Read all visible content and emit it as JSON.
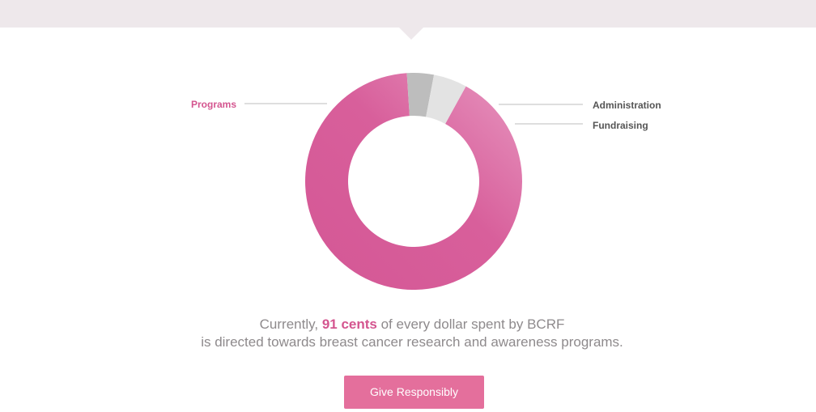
{
  "chart_data": {
    "type": "pie",
    "categories": [
      "Programs",
      "Administration",
      "Fundraising"
    ],
    "values": [
      91,
      4,
      5
    ],
    "colors": [
      "#d95b98",
      "#bdbdbd",
      "#e3e3e3"
    ],
    "title": "",
    "legend": "callout labels"
  },
  "caption": {
    "prefix": "Currently,",
    "highlight": "91 cents",
    "suffix": "of every dollar spent by BCRF",
    "line2": "is directed towards breast cancer research and awareness programs."
  },
  "cta": {
    "label": "Give Responsibly"
  },
  "colors": {
    "accent": "#d4558f",
    "button": "#e46f9c",
    "top_band": "#eee8eb"
  }
}
